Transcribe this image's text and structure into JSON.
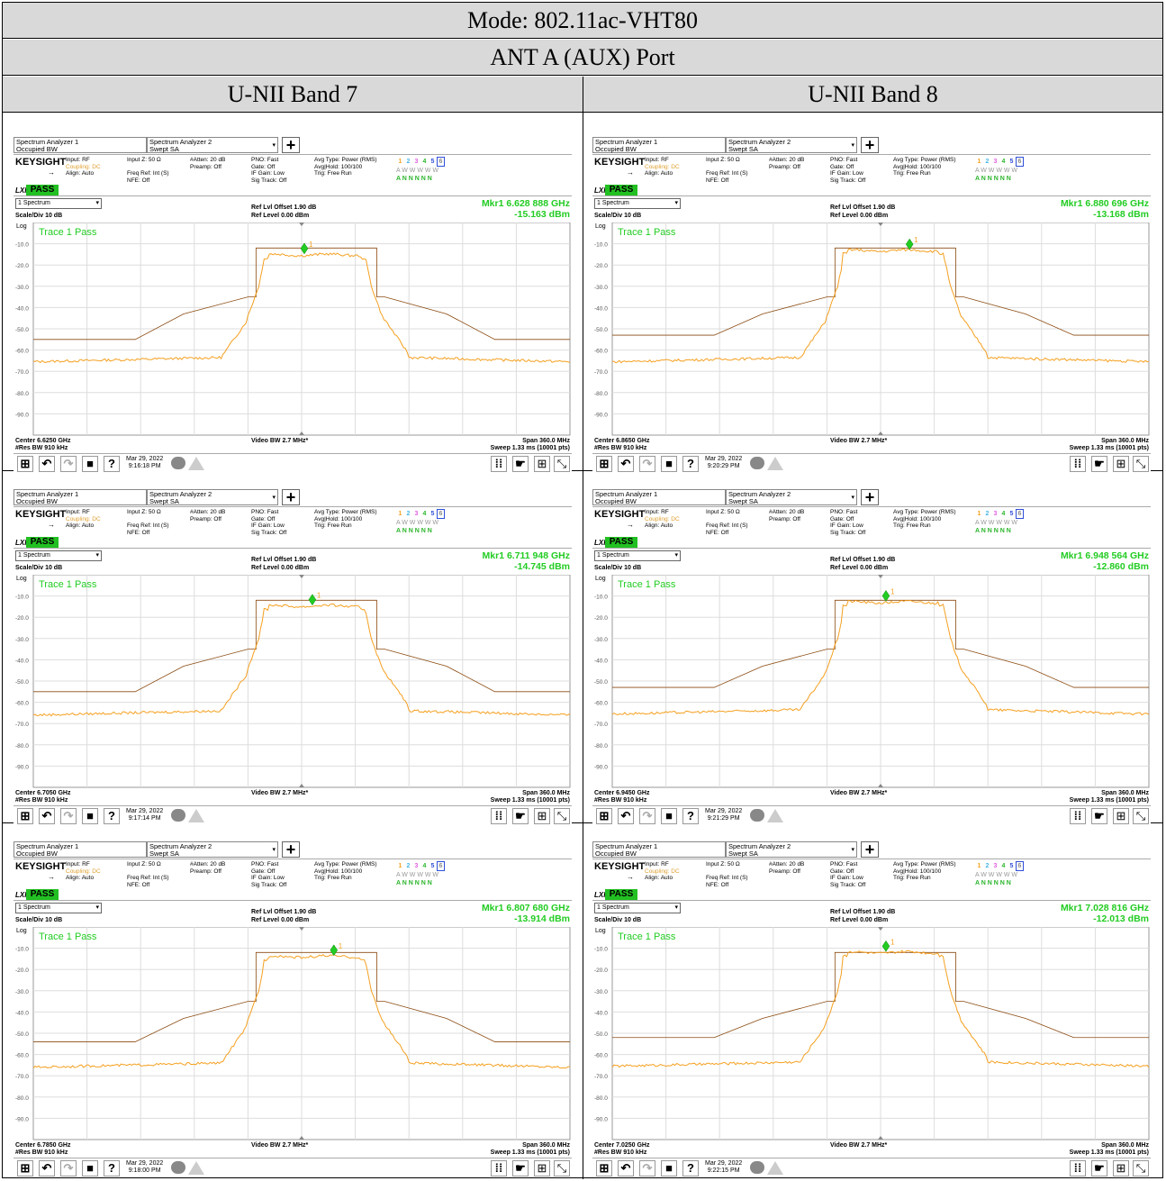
{
  "mode": "Mode: 802.11ac-VHT80",
  "port": "ANT A (AUX) Port",
  "band7": "U-NII Band 7",
  "band8": "U-NII Band 8",
  "ui": {
    "tab1a": "Spectrum Analyzer 1",
    "tab1b": "Occupied BW",
    "tab2a": "Spectrum Analyzer 2",
    "tab2b": "Swept SA",
    "brand": "KEYSIGHT",
    "lxi": "LXI",
    "pass": "PASS",
    "input": "Input: RF",
    "coupling": "Coupling: DC",
    "align": "Align: Auto",
    "inputz": "Input Z: 50 Ω",
    "freqref": "Freq Ref: Int (S)",
    "nfe": "NFE: Off",
    "atten": "#Atten: 20 dB",
    "preamp": "Preamp: Off",
    "pno": "PNO: Fast",
    "gate": "Gate: Off",
    "ifgain": "IF Gain: Low",
    "sigtrack": "Sig Track: Off",
    "avgtype": "Avg Type: Power (RMS)",
    "avghold": "Avg|Hold: 100/100",
    "trig": "Trig: Free Run",
    "trace_nums": [
      "1",
      "2",
      "3",
      "4",
      "5",
      "6"
    ],
    "trace_row2": "A W W W W W",
    "trace_row3": "A N N N N N",
    "spectrum": "1 Spectrum",
    "scale": "Scale/Div 10 dB",
    "reflvloffset": "Ref Lvl Offset 1.90 dB",
    "reflevel": "Ref Level 0.00 dBm",
    "log": "Log",
    "trace1pass": "Trace 1 Pass",
    "yticks": [
      "-10.0",
      "-20.0",
      "-30.0",
      "-40.0",
      "-50.0",
      "-60.0",
      "-70.0",
      "-80.0",
      "-90.0"
    ],
    "marker_label": "1",
    "videobw": "Video BW 2.7 MHz*",
    "span": "Span 360.0 MHz",
    "resbw": "#Res BW 910 kHz",
    "sweep": "Sweep 1.33 ms (10001 pts)",
    "date": "Mar 29, 2022",
    "help": "?"
  },
  "colors": {
    "trace": "#f5a020",
    "mask": "#8b4a10",
    "marker": "#22cc22",
    "pass": "#22c022",
    "header_bg": "#d9d9d9"
  },
  "panels": [
    {
      "mkr": "Mkr1  6.628 888 GHz",
      "power": "-15.163 dBm",
      "center": "Center 6.6250 GHz",
      "time": "9:16:18 PM",
      "mkr_x_frac": 0.505,
      "plateau_dbm": -15.2,
      "floor_dbm": -65.5,
      "mask_base_dbm": -55
    },
    {
      "mkr": "Mkr1  6.880 696 GHz",
      "power": "-13.168 dBm",
      "center": "Center 6.8650 GHz",
      "time": "9:20:29 PM",
      "mkr_x_frac": 0.554,
      "plateau_dbm": -13.2,
      "floor_dbm": -65.5,
      "mask_base_dbm": -53
    },
    {
      "mkr": "Mkr1  6.711 948 GHz",
      "power": "-14.745 dBm",
      "center": "Center 6.7050 GHz",
      "time": "9:17:14 PM",
      "mkr_x_frac": 0.52,
      "plateau_dbm": -14.7,
      "floor_dbm": -66,
      "mask_base_dbm": -55
    },
    {
      "mkr": "Mkr1  6.948 564 GHz",
      "power": "-12.860 dBm",
      "center": "Center 6.9450 GHz",
      "time": "9:21:29 PM",
      "mkr_x_frac": 0.51,
      "plateau_dbm": -12.9,
      "floor_dbm": -65.5,
      "mask_base_dbm": -53
    },
    {
      "mkr": "Mkr1  6.807 680 GHz",
      "power": "-13.914 dBm",
      "center": "Center 6.7850 GHz",
      "time": "9:18:00 PM",
      "mkr_x_frac": 0.56,
      "plateau_dbm": -13.9,
      "floor_dbm": -66,
      "mask_base_dbm": -54
    },
    {
      "mkr": "Mkr1  7.028 816 GHz",
      "power": "-12.013 dBm",
      "center": "Center 7.0250 GHz",
      "time": "9:22:15 PM",
      "mkr_x_frac": 0.51,
      "plateau_dbm": -12.0,
      "floor_dbm": -65.5,
      "mask_base_dbm": -52
    }
  ]
}
